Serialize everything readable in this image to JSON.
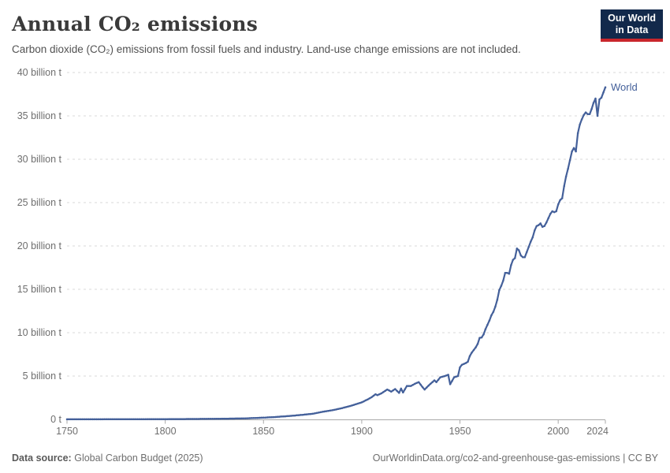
{
  "header": {
    "title": "Annual CO₂ emissions",
    "subtitle": "Carbon dioxide (CO₂) emissions from fossil fuels and industry. Land-use change emissions are not included.",
    "logo": {
      "line1": "Our World",
      "line2": "in Data",
      "bg_color": "#12294b",
      "accent_color": "#c9262c"
    }
  },
  "footer": {
    "source_label": "Data source:",
    "source_text": "Global Carbon Budget (2025)",
    "credit": "OurWorldinData.org/co2-and-greenhouse-gas-emissions | CC BY"
  },
  "chart_data": {
    "type": "line",
    "title": "Annual CO₂ emissions",
    "xlabel": "",
    "ylabel": "",
    "unit": "billion tonnes of CO₂",
    "xlim": [
      1750,
      2024
    ],
    "ylim": [
      0,
      40
    ],
    "grid": "horizontal-dashed",
    "legend_position": "line-end-label",
    "line_color": "#44609a",
    "grid_color": "#dadada",
    "axis_color": "#a9a9a9",
    "tick_label_color": "#6e6e6e",
    "x_ticks": [
      1750,
      1800,
      1850,
      1900,
      1950,
      2000,
      2024
    ],
    "y_ticks": [
      {
        "value": 0,
        "label": "0 t"
      },
      {
        "value": 5,
        "label": "5 billion t"
      },
      {
        "value": 10,
        "label": "10 billion t"
      },
      {
        "value": 15,
        "label": "15 billion t"
      },
      {
        "value": 20,
        "label": "20 billion t"
      },
      {
        "value": 25,
        "label": "25 billion t"
      },
      {
        "value": 30,
        "label": "30 billion t"
      },
      {
        "value": 35,
        "label": "35 billion t"
      },
      {
        "value": 40,
        "label": "40 billion t"
      }
    ],
    "series": [
      {
        "name": "World",
        "color": "#44609a",
        "points": [
          [
            1750,
            0.01
          ],
          [
            1760,
            0.011
          ],
          [
            1770,
            0.014
          ],
          [
            1780,
            0.017
          ],
          [
            1790,
            0.022
          ],
          [
            1800,
            0.03
          ],
          [
            1810,
            0.04
          ],
          [
            1820,
            0.054
          ],
          [
            1830,
            0.08
          ],
          [
            1840,
            0.11
          ],
          [
            1850,
            0.2
          ],
          [
            1855,
            0.26
          ],
          [
            1860,
            0.34
          ],
          [
            1865,
            0.43
          ],
          [
            1870,
            0.53
          ],
          [
            1875,
            0.65
          ],
          [
            1880,
            0.87
          ],
          [
            1885,
            1.05
          ],
          [
            1890,
            1.3
          ],
          [
            1895,
            1.6
          ],
          [
            1900,
            1.96
          ],
          [
            1903,
            2.3
          ],
          [
            1905,
            2.55
          ],
          [
            1907,
            2.9
          ],
          [
            1908,
            2.8
          ],
          [
            1910,
            3.0
          ],
          [
            1913,
            3.45
          ],
          [
            1915,
            3.2
          ],
          [
            1917,
            3.5
          ],
          [
            1919,
            3.05
          ],
          [
            1920,
            3.55
          ],
          [
            1921,
            3.1
          ],
          [
            1923,
            3.85
          ],
          [
            1925,
            3.85
          ],
          [
            1927,
            4.1
          ],
          [
            1929,
            4.3
          ],
          [
            1931,
            3.7
          ],
          [
            1932,
            3.45
          ],
          [
            1934,
            3.9
          ],
          [
            1937,
            4.5
          ],
          [
            1938,
            4.3
          ],
          [
            1940,
            4.85
          ],
          [
            1943,
            5.05
          ],
          [
            1944,
            5.15
          ],
          [
            1945,
            4.05
          ],
          [
            1947,
            4.85
          ],
          [
            1949,
            5.0
          ],
          [
            1950,
            6.0
          ],
          [
            1951,
            6.3
          ],
          [
            1952,
            6.4
          ],
          [
            1953,
            6.5
          ],
          [
            1954,
            6.65
          ],
          [
            1955,
            7.3
          ],
          [
            1956,
            7.7
          ],
          [
            1957,
            8.0
          ],
          [
            1958,
            8.3
          ],
          [
            1959,
            8.7
          ],
          [
            1960,
            9.4
          ],
          [
            1961,
            9.45
          ],
          [
            1962,
            9.8
          ],
          [
            1963,
            10.4
          ],
          [
            1964,
            10.9
          ],
          [
            1965,
            11.4
          ],
          [
            1966,
            12.0
          ],
          [
            1967,
            12.4
          ],
          [
            1968,
            13.0
          ],
          [
            1969,
            13.8
          ],
          [
            1970,
            14.9
          ],
          [
            1971,
            15.4
          ],
          [
            1972,
            16.0
          ],
          [
            1973,
            16.9
          ],
          [
            1974,
            16.9
          ],
          [
            1975,
            16.8
          ],
          [
            1976,
            17.8
          ],
          [
            1977,
            18.4
          ],
          [
            1978,
            18.6
          ],
          [
            1979,
            19.7
          ],
          [
            1980,
            19.5
          ],
          [
            1981,
            18.9
          ],
          [
            1982,
            18.7
          ],
          [
            1983,
            18.7
          ],
          [
            1984,
            19.3
          ],
          [
            1985,
            19.9
          ],
          [
            1986,
            20.5
          ],
          [
            1987,
            21.0
          ],
          [
            1988,
            21.8
          ],
          [
            1989,
            22.3
          ],
          [
            1990,
            22.4
          ],
          [
            1991,
            22.6
          ],
          [
            1992,
            22.2
          ],
          [
            1993,
            22.3
          ],
          [
            1994,
            22.7
          ],
          [
            1995,
            23.2
          ],
          [
            1996,
            23.7
          ],
          [
            1997,
            24.0
          ],
          [
            1998,
            23.9
          ],
          [
            1999,
            24.0
          ],
          [
            2000,
            24.8
          ],
          [
            2001,
            25.3
          ],
          [
            2002,
            25.5
          ],
          [
            2003,
            26.9
          ],
          [
            2004,
            28.0
          ],
          [
            2005,
            28.9
          ],
          [
            2006,
            29.9
          ],
          [
            2007,
            30.9
          ],
          [
            2008,
            31.3
          ],
          [
            2009,
            30.9
          ],
          [
            2010,
            33.0
          ],
          [
            2011,
            34.0
          ],
          [
            2012,
            34.6
          ],
          [
            2013,
            35.1
          ],
          [
            2014,
            35.4
          ],
          [
            2015,
            35.2
          ],
          [
            2016,
            35.2
          ],
          [
            2017,
            35.8
          ],
          [
            2018,
            36.5
          ],
          [
            2019,
            37.0
          ],
          [
            2020,
            35.0
          ],
          [
            2021,
            36.9
          ],
          [
            2022,
            37.1
          ],
          [
            2023,
            37.7
          ],
          [
            2024,
            38.3
          ]
        ]
      }
    ]
  }
}
